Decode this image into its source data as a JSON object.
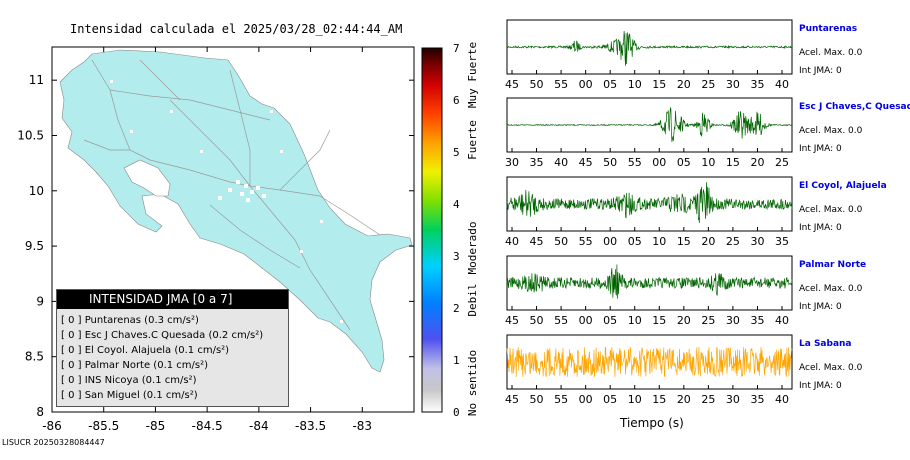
{
  "header": {
    "title": "Intensidad calculada el 2025/03/28_02:44:44_AM"
  },
  "footer": {
    "id": "LISUCR 20250328084447"
  },
  "map": {
    "lon_ticks": [
      "-86",
      "-85.5",
      "-85",
      "-84.5",
      "-84",
      "-83.5",
      "-83"
    ],
    "lat_ticks": [
      "11",
      "10.5",
      "10",
      "9.5",
      "9",
      "8.5",
      "8"
    ],
    "xlim": [
      -86,
      -82.5
    ],
    "ylim": [
      8,
      11.3
    ],
    "land_color": "#b3ecec"
  },
  "legend": {
    "title": "INTENSIDAD JMA [0 a 7]",
    "rows": [
      "[ 0 ]  Puntarenas (0.3 cm/s²)",
      "[ 0 ]  Esc J Chaves.C Quesada (0.2 cm/s²)",
      "[ 0 ]  El Coyol. Alajuela (0.1 cm/s²)",
      "[ 0 ]  Palmar Norte (0.1 cm/s²)",
      "[ 0 ]  INS Nicoya (0.1 cm/s²)",
      "[ 0 ]  San Miguel (0.1 cm/s²)"
    ]
  },
  "colorbar": {
    "ticks": [
      "0",
      "1",
      "2",
      "3",
      "4",
      "5",
      "6",
      "7"
    ],
    "labels": [
      "No sentido",
      "Debil",
      "Moderado",
      "Fuerte",
      "Muy Fuerte"
    ]
  },
  "stations": [
    {
      "name": "Puntarenas",
      "acel": "Acel. Max. 0.0",
      "int": "Int JMA: 0",
      "ticks": [
        "45",
        "50",
        "55",
        "00",
        "05",
        "10",
        "15",
        "20",
        "25",
        "30",
        "35",
        "40"
      ],
      "color": "#006400"
    },
    {
      "name": "Esc J Chaves,C Quesada",
      "acel": "Acel. Max. 0.0",
      "int": "Int JMA: 0",
      "ticks": [
        "30",
        "35",
        "40",
        "45",
        "50",
        "55",
        "00",
        "05",
        "10",
        "15",
        "20",
        "25"
      ],
      "color": "#006400"
    },
    {
      "name": "El Coyol, Alajuela",
      "acel": "Acel. Max. 0.0",
      "int": "Int JMA: 0",
      "ticks": [
        "40",
        "45",
        "50",
        "55",
        "00",
        "05",
        "10",
        "15",
        "20",
        "25",
        "30",
        "35"
      ],
      "color": "#006400"
    },
    {
      "name": "Palmar Norte",
      "acel": "Acel. Max. 0.0",
      "int": "Int JMA: 0",
      "ticks": [
        "45",
        "50",
        "55",
        "00",
        "05",
        "10",
        "15",
        "20",
        "25",
        "30",
        "35",
        "40"
      ],
      "color": "#006400"
    },
    {
      "name": "La Sabana",
      "acel": "Acel. Max. 0.0",
      "int": "Int JMA: 0",
      "ticks": [
        "45",
        "50",
        "55",
        "00",
        "05",
        "10",
        "15",
        "20",
        "25",
        "30",
        "35",
        "40"
      ],
      "color": "#ffa500"
    }
  ],
  "xaxis_label": "Tiempo (s)",
  "chart_data": [
    {
      "type": "heatmap",
      "title": "Intensidad calculada el 2025/03/28_02:44:44_AM",
      "xlim": [
        -86,
        -82.5
      ],
      "ylim": [
        8,
        11.3
      ],
      "x_ticks": [
        -86,
        -85.5,
        -85,
        -84.5,
        -84,
        -83.5,
        -83
      ],
      "y_ticks": [
        8,
        8.5,
        9,
        9.5,
        10,
        10.5,
        11
      ],
      "colorbar": {
        "range": [
          0,
          7
        ],
        "labels": [
          "No sentido",
          "Debil",
          "Moderado",
          "Fuerte",
          "Muy Fuerte"
        ]
      }
    },
    {
      "type": "line",
      "name": "Puntarenas",
      "xlabel": "Tiempo (s)",
      "x_ticks": [
        "45",
        "50",
        "55",
        "00",
        "05",
        "10",
        "15",
        "20",
        "25",
        "30",
        "35",
        "40"
      ]
    },
    {
      "type": "line",
      "name": "Esc J Chaves,C Quesada",
      "xlabel": "Tiempo (s)",
      "x_ticks": [
        "30",
        "35",
        "40",
        "45",
        "50",
        "55",
        "00",
        "05",
        "10",
        "15",
        "20",
        "25"
      ]
    },
    {
      "type": "line",
      "name": "El Coyol, Alajuela",
      "xlabel": "Tiempo (s)",
      "x_ticks": [
        "40",
        "45",
        "50",
        "55",
        "00",
        "05",
        "10",
        "15",
        "20",
        "25",
        "30",
        "35"
      ]
    },
    {
      "type": "line",
      "name": "Palmar Norte",
      "xlabel": "Tiempo (s)",
      "x_ticks": [
        "45",
        "50",
        "55",
        "00",
        "05",
        "10",
        "15",
        "20",
        "25",
        "30",
        "35",
        "40"
      ]
    },
    {
      "type": "line",
      "name": "La Sabana",
      "xlabel": "Tiempo (s)",
      "x_ticks": [
        "45",
        "50",
        "55",
        "00",
        "05",
        "10",
        "15",
        "20",
        "25",
        "30",
        "35",
        "40"
      ]
    }
  ]
}
